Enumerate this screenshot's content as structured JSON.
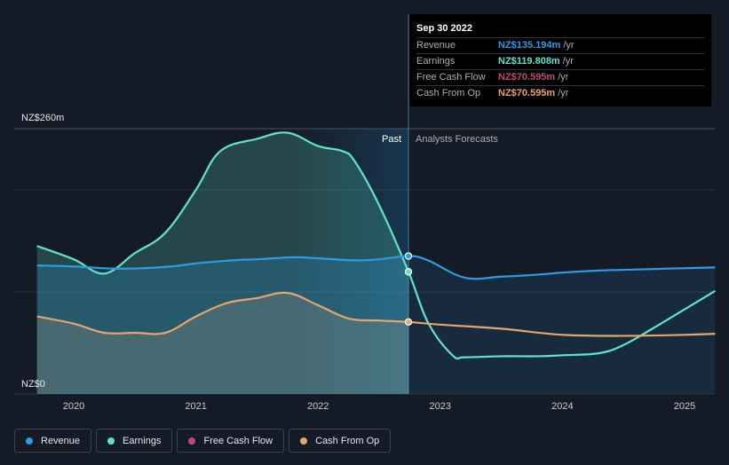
{
  "chart_data": {
    "type": "area",
    "currency_prefix": "NZ$",
    "y_axis_labels": {
      "top": "NZ$260m",
      "bottom": "NZ$0"
    },
    "ylim": [
      0,
      260
    ],
    "xlim": [
      2019.7,
      2025.25
    ],
    "x_ticks": [
      {
        "value": 2020,
        "label": "2020"
      },
      {
        "value": 2021,
        "label": "2021"
      },
      {
        "value": 2022,
        "label": "2022"
      },
      {
        "value": 2023,
        "label": "2023"
      },
      {
        "value": 2024,
        "label": "2024"
      },
      {
        "value": 2025,
        "label": "2025"
      }
    ],
    "gridlines": [
      0,
      100,
      200,
      260
    ],
    "divider_x": 2022.74,
    "highlight_start_x": 2021.74,
    "past_label": "Past",
    "forecast_label": "Analysts Forecasts",
    "series": [
      {
        "name": "Revenue",
        "color": "#2e9be6",
        "fill": true,
        "points": [
          [
            2019.7,
            126
          ],
          [
            2020.0,
            125
          ],
          [
            2020.3,
            123
          ],
          [
            2020.5,
            123
          ],
          [
            2020.8,
            125
          ],
          [
            2021.0,
            128
          ],
          [
            2021.3,
            131
          ],
          [
            2021.5,
            132
          ],
          [
            2021.8,
            134
          ],
          [
            2022.0,
            133
          ],
          [
            2022.3,
            131
          ],
          [
            2022.5,
            132
          ],
          [
            2022.74,
            135.194
          ],
          [
            2022.9,
            131
          ],
          [
            2023.2,
            114
          ],
          [
            2023.5,
            115
          ],
          [
            2023.8,
            117
          ],
          [
            2024.0,
            119
          ],
          [
            2024.3,
            121
          ],
          [
            2024.6,
            122
          ],
          [
            2024.9,
            123
          ],
          [
            2025.25,
            124
          ]
        ],
        "markers": [
          [
            2022.74,
            135.194
          ]
        ]
      },
      {
        "name": "Earnings",
        "color": "#5ee5c8",
        "fill": true,
        "points": [
          [
            2019.7,
            145
          ],
          [
            2020.0,
            132
          ],
          [
            2020.25,
            118
          ],
          [
            2020.5,
            138
          ],
          [
            2020.75,
            158
          ],
          [
            2021.0,
            200
          ],
          [
            2021.2,
            238
          ],
          [
            2021.5,
            250
          ],
          [
            2021.75,
            256
          ],
          [
            2022.0,
            243
          ],
          [
            2022.2,
            238
          ],
          [
            2022.3,
            228
          ],
          [
            2022.5,
            185
          ],
          [
            2022.74,
            119.808
          ],
          [
            2022.9,
            70
          ],
          [
            2023.1,
            38
          ],
          [
            2023.2,
            36
          ],
          [
            2023.5,
            37
          ],
          [
            2023.8,
            37
          ],
          [
            2024.0,
            38
          ],
          [
            2024.3,
            40
          ],
          [
            2024.5,
            48
          ],
          [
            2024.75,
            65
          ],
          [
            2025.0,
            83
          ],
          [
            2025.25,
            101
          ]
        ],
        "markers": [
          [
            2022.74,
            119.808
          ]
        ]
      },
      {
        "name": "Free Cash Flow",
        "color": "#c0457d",
        "fill": false,
        "points": [],
        "markers": []
      },
      {
        "name": "Cash From Op",
        "color": "#e5a56c",
        "fill": true,
        "points": [
          [
            2019.7,
            76
          ],
          [
            2020.0,
            69
          ],
          [
            2020.25,
            60
          ],
          [
            2020.5,
            60
          ],
          [
            2020.75,
            60
          ],
          [
            2021.0,
            76
          ],
          [
            2021.25,
            89
          ],
          [
            2021.5,
            94
          ],
          [
            2021.75,
            99
          ],
          [
            2022.0,
            87
          ],
          [
            2022.25,
            74
          ],
          [
            2022.5,
            72
          ],
          [
            2022.74,
            70.595
          ],
          [
            2023.0,
            68
          ],
          [
            2023.5,
            64
          ],
          [
            2024.0,
            58
          ],
          [
            2024.5,
            57
          ],
          [
            2025.0,
            58
          ],
          [
            2025.25,
            59
          ]
        ],
        "markers": [
          [
            2022.74,
            70.595
          ]
        ]
      }
    ]
  },
  "tooltip": {
    "date": "Sep 30 2022",
    "rows": [
      {
        "label": "Revenue",
        "value": "NZ$135.194m",
        "unit": "/yr",
        "color": "#2e9be6"
      },
      {
        "label": "Earnings",
        "value": "NZ$119.808m",
        "unit": "/yr",
        "color": "#5ee5c8"
      },
      {
        "label": "Free Cash Flow",
        "value": "NZ$70.595m",
        "unit": "/yr",
        "color": "#c0457d"
      },
      {
        "label": "Cash From Op",
        "value": "NZ$70.595m",
        "unit": "/yr",
        "color": "#e5a56c"
      }
    ]
  },
  "legend": [
    {
      "label": "Revenue",
      "color": "#2e9be6"
    },
    {
      "label": "Earnings",
      "color": "#5ee5c8"
    },
    {
      "label": "Free Cash Flow",
      "color": "#c0457d"
    },
    {
      "label": "Cash From Op",
      "color": "#e5a56c"
    }
  ]
}
